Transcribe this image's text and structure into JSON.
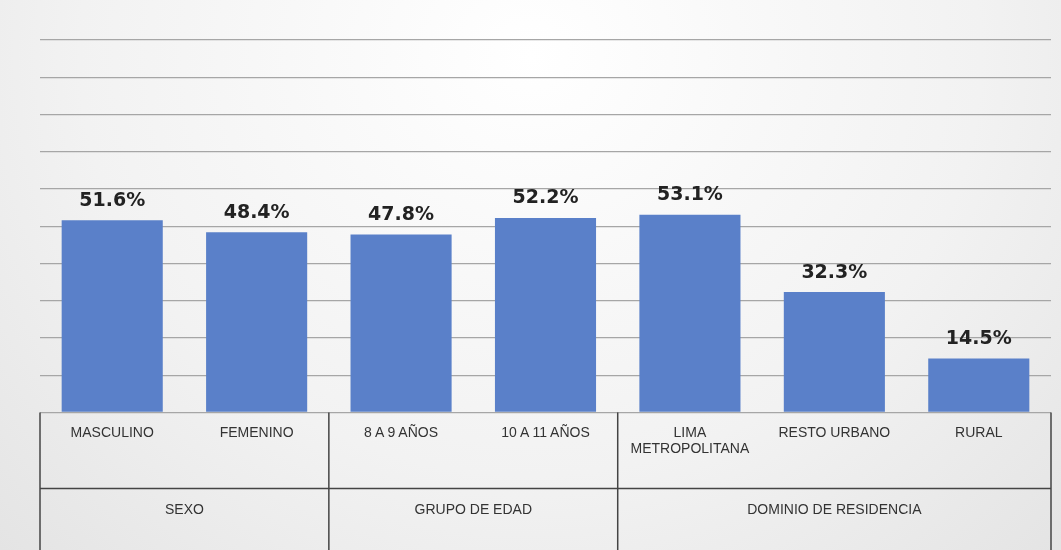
{
  "chart_data": {
    "type": "bar",
    "categories": [
      "MASCULINO",
      "FEMENINO",
      "8 A 9 AÑOS",
      "10 A 11 AÑOS",
      "LIMA METROPOLITANA",
      "RESTO URBANO",
      "RURAL"
    ],
    "values": [
      51.6,
      48.4,
      47.8,
      52.2,
      53.1,
      32.3,
      14.5
    ],
    "color": "#5a80c9",
    "value_labels": [
      "51.6%",
      "48.4%",
      "47.8%",
      "52.2%",
      "53.1%",
      "32.3%",
      "14.5%"
    ],
    "annotations": [
      "SEXO",
      "GRUPO DE EDAD",
      "DOMINIO DE RESIDENCIA"
    ],
    "ylim": [
      0,
      100
    ],
    "yticks": [
      {
        "value": 0,
        "label": null
      },
      {
        "value": 10,
        "label": null
      },
      {
        "value": 20,
        "label": null
      },
      {
        "value": 30,
        "label": null
      },
      {
        "value": 40,
        "label": null
      },
      {
        "value": 50,
        "label": null
      },
      {
        "value": 60,
        "label": null
      },
      {
        "value": 70,
        "label": null
      },
      {
        "value": 80,
        "label": null
      },
      {
        "value": 90,
        "label": null
      },
      {
        "value": 100,
        "label": null
      }
    ],
    "grid": "y",
    "tick_labels": "x",
    "legend": false
  }
}
